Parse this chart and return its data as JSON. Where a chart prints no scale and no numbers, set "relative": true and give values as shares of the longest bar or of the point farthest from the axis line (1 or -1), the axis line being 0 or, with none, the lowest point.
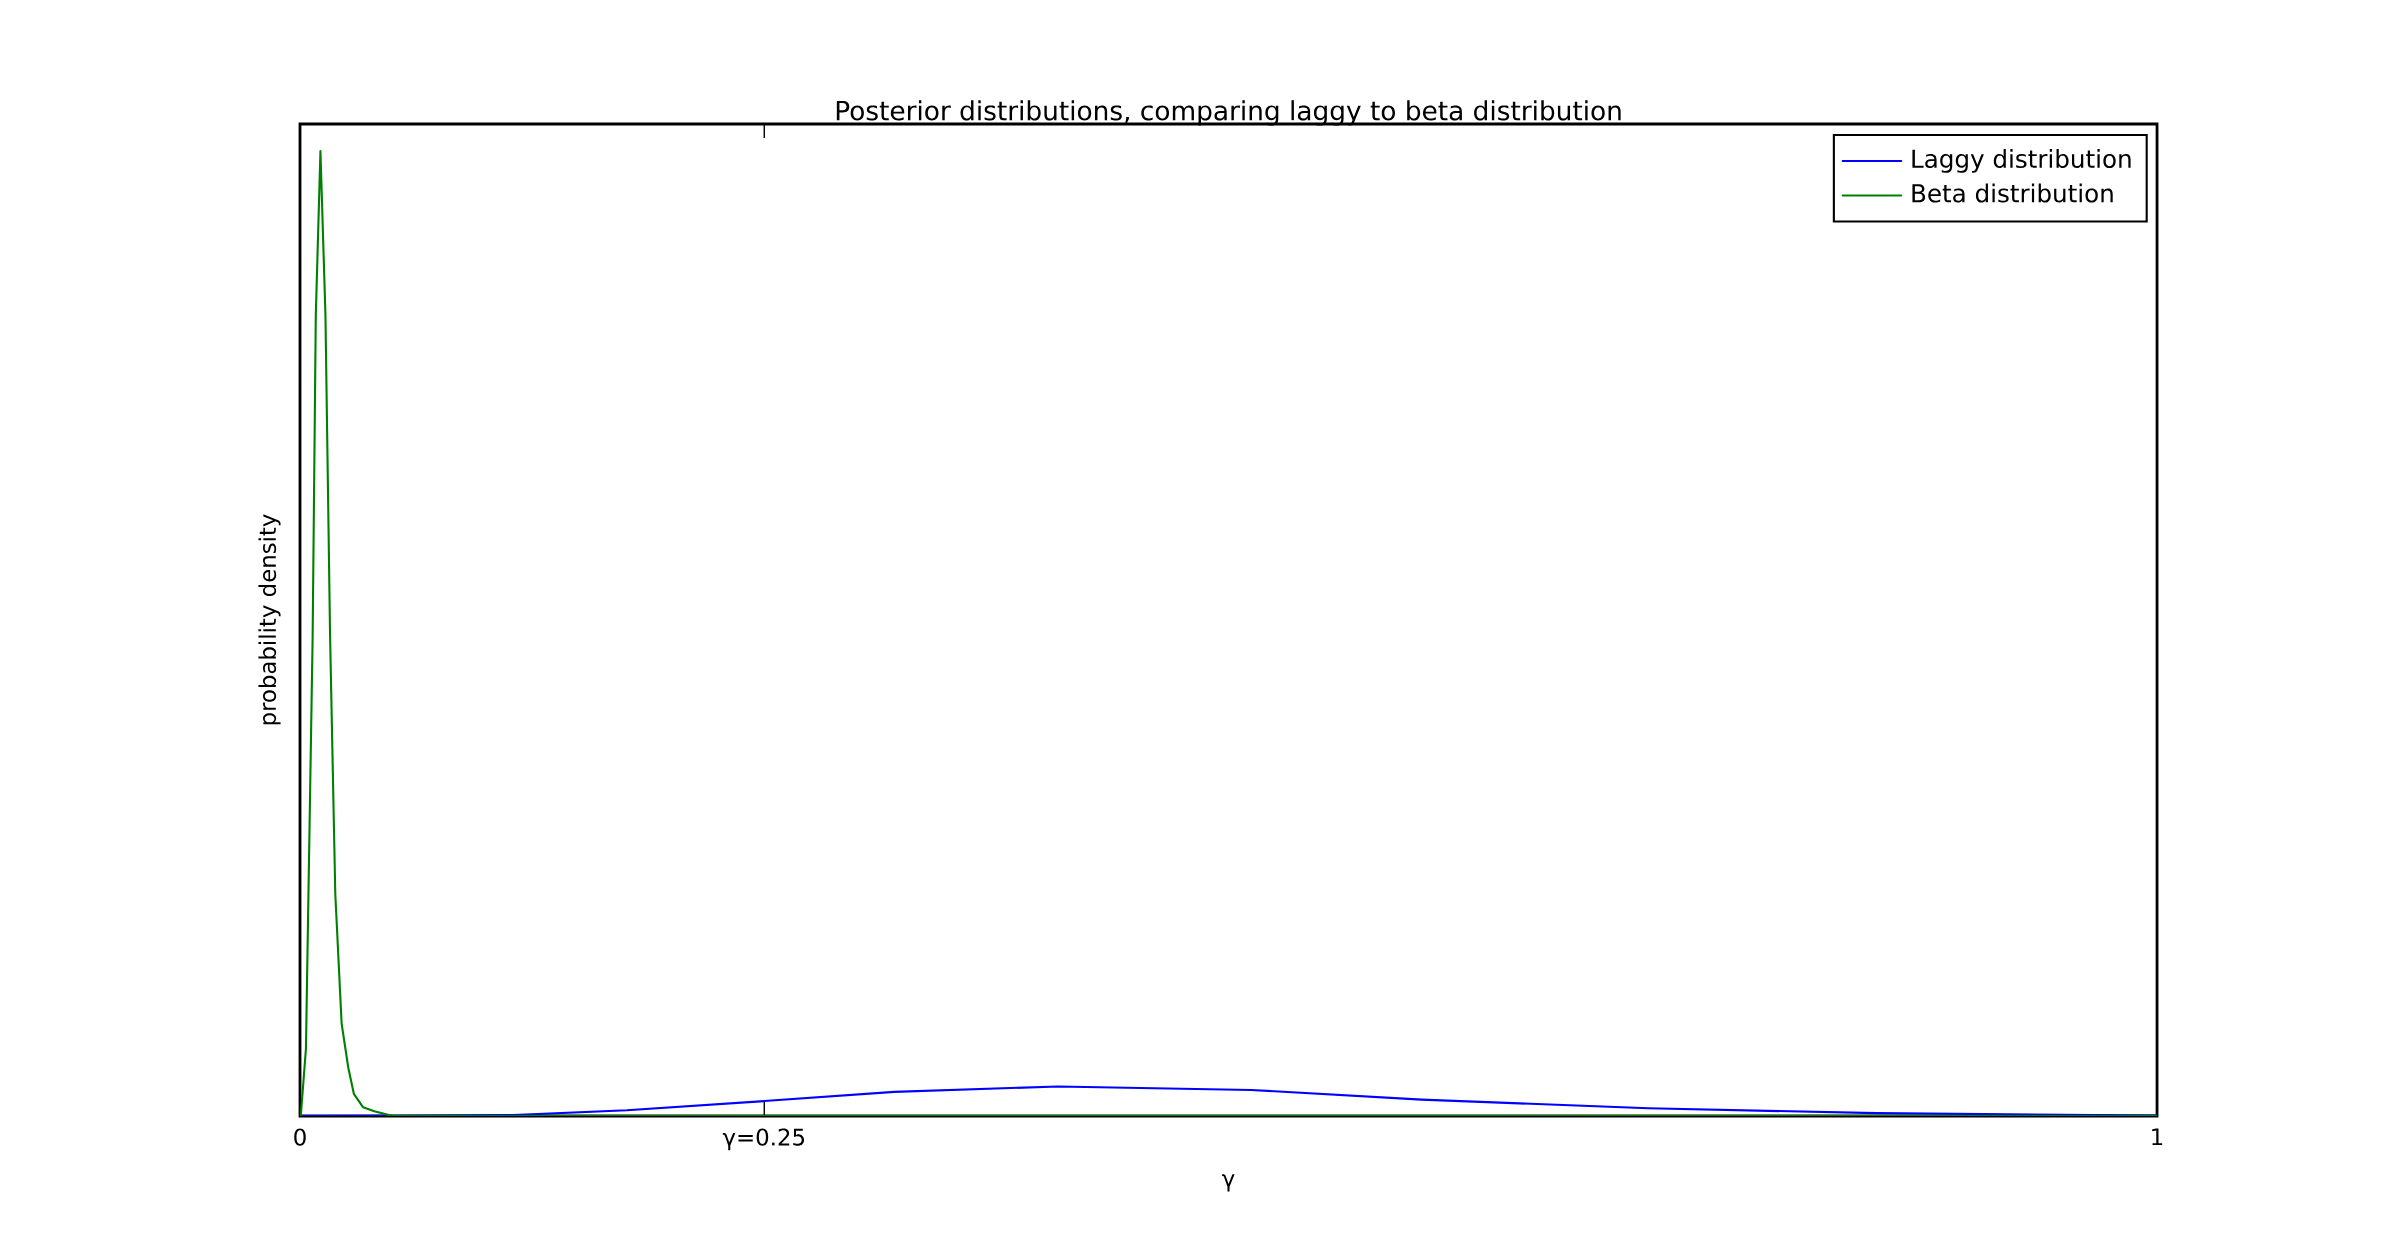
{
  "chart_data": {
    "type": "line",
    "title": "Posterior distributions, comparing laggy to beta distribution",
    "xlabel": "γ",
    "ylabel": "probability density",
    "relative": true,
    "legend": "top right",
    "xlim": [
      0,
      1
    ],
    "xticks": [
      0,
      {
        "value": 0.25,
        "label": "γ=0.25"
      },
      1
    ],
    "series": [
      {
        "name": "Laggy distribution",
        "color": "#0000ff",
        "x": [
          0,
          0.05,
          0.115,
          0.176,
          0.25,
          0.32,
          0.408,
          0.512,
          0.604,
          0.726,
          0.849,
          1
        ],
        "values": [
          0,
          0.0002,
          0.001,
          0.006,
          0.0155,
          0.025,
          0.0306,
          0.027,
          0.017,
          0.008,
          0.003,
          0.0005
        ]
      },
      {
        "name": "Beta distribution",
        "color": "#008000",
        "x": [
          0,
          0.0005,
          0.0032,
          0.0068,
          0.0085,
          0.011,
          0.0137,
          0.0162,
          0.019,
          0.0224,
          0.026,
          0.029,
          0.034,
          0.04,
          0.05,
          1
        ],
        "values": [
          0,
          0.002,
          0.07,
          0.497,
          0.83,
          1,
          0.83,
          0.497,
          0.23,
          0.096,
          0.05,
          0.023,
          0.009,
          0.005,
          0,
          0
        ]
      }
    ]
  }
}
